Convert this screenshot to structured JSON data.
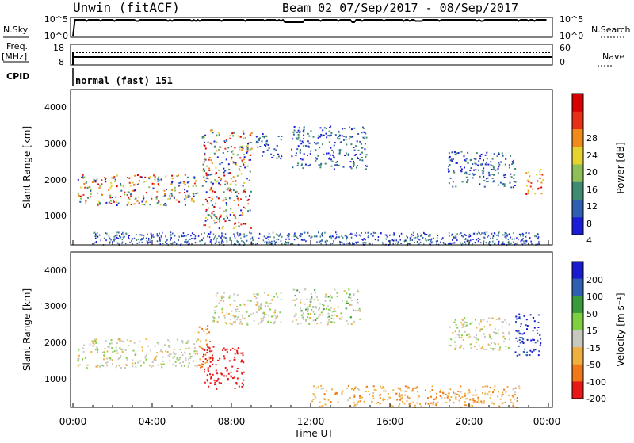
{
  "header": {
    "station": "Unwin (fitACF)",
    "beam_date": "Beam 02  07/Sep/2017 - 08/Sep/2017"
  },
  "top_panels": {
    "nsky_label": "N.Sky",
    "nsky_ticks": [
      "10^5",
      "10^0"
    ],
    "nsearch_label": "N.Search",
    "nsearch_ticks": [
      "10^5",
      "10^0"
    ],
    "freq_label": "Freq.",
    "freq_unit": "[MHz]",
    "freq_ticks": [
      "18",
      "8"
    ],
    "nave_label": "Nave",
    "nave_ticks": [
      "60",
      "0"
    ],
    "cpid_label": "CPID",
    "cpid_text": "normal (fast) 151"
  },
  "power_panel": {
    "ylabel": "Slant Range [km]",
    "yticks": [
      "4000",
      "3000",
      "2000",
      "1000"
    ],
    "colorbar_label": "Power [dB]",
    "colorbar_ticks": [
      "28",
      "24",
      "20",
      "16",
      "12",
      "8",
      "4"
    ]
  },
  "velocity_panel": {
    "ylabel": "Slant Range [km]",
    "yticks": [
      "4000",
      "3000",
      "2000",
      "1000"
    ],
    "colorbar_label": "Velocity [m s⁻¹]",
    "colorbar_ticks": [
      "200",
      "100",
      "50",
      "15",
      "-15",
      "-50",
      "-100",
      "-200"
    ]
  },
  "xaxis": {
    "label": "Time UT",
    "ticks": [
      "00:00",
      "04:00",
      "08:00",
      "12:00",
      "16:00",
      "20:00",
      "00:00"
    ]
  },
  "colors": {
    "power_scale": [
      "#1c1cd8",
      "#2f5fb0",
      "#3f8a72",
      "#8fbf58",
      "#e6d230",
      "#f08a1a",
      "#e83018",
      "#d80000"
    ],
    "velocity_scale": [
      "#1a1ad0",
      "#2f5fb0",
      "#3a9a3a",
      "#7fd040",
      "#c8c8c0",
      "#f0b040",
      "#f07818",
      "#e81818"
    ]
  },
  "chart_data": [
    {
      "type": "heatmap",
      "title": "Power",
      "xlabel": "Time UT",
      "ylabel": "Slant Range [km]",
      "x_range_hours": [
        0,
        24
      ],
      "ylim": [
        180,
        4500
      ],
      "value_label": "Power [dB]",
      "value_range": [
        0,
        32
      ],
      "regions": [
        {
          "t": [
            0.2,
            6.3
          ],
          "r": [
            1300,
            2150
          ],
          "level": "mixed",
          "peak_dB": 24
        },
        {
          "t": [
            6.5,
            9.0
          ],
          "r": [
            650,
            3400
          ],
          "level": "mixed",
          "peak_dB": 28
        },
        {
          "t": [
            9.2,
            10.5
          ],
          "r": [
            2600,
            3300
          ],
          "level": "low",
          "peak_dB": 8
        },
        {
          "t": [
            11.0,
            14.8
          ],
          "r": [
            2300,
            3500
          ],
          "level": "low",
          "peak_dB": 8
        },
        {
          "t": [
            18.9,
            22.3
          ],
          "r": [
            1800,
            2800
          ],
          "level": "low",
          "peak_dB": 10
        },
        {
          "t": [
            22.8,
            23.7
          ],
          "r": [
            1600,
            2300
          ],
          "level": "high",
          "peak_dB": 28
        }
      ]
    },
    {
      "type": "heatmap",
      "title": "Velocity",
      "xlabel": "Time UT",
      "ylabel": "Slant Range [km]",
      "x_range_hours": [
        0,
        24
      ],
      "ylim": [
        180,
        4500
      ],
      "value_label": "Velocity [m s⁻¹]",
      "value_range": [
        -200,
        200
      ],
      "regions": [
        {
          "t": [
            0.2,
            6.3
          ],
          "r": [
            1300,
            2100
          ],
          "v": 0
        },
        {
          "t": [
            6.3,
            6.9
          ],
          "r": [
            1300,
            2500
          ],
          "v": -60
        },
        {
          "t": [
            6.5,
            8.6
          ],
          "r": [
            700,
            1900
          ],
          "v": -220
        },
        {
          "t": [
            7.0,
            10.5
          ],
          "r": [
            2500,
            3400
          ],
          "v": 0
        },
        {
          "t": [
            11.0,
            14.5
          ],
          "r": [
            2500,
            3500
          ],
          "v": 10
        },
        {
          "t": [
            12.0,
            22.5
          ],
          "r": [
            200,
            800
          ],
          "v": -40
        },
        {
          "t": [
            18.9,
            22.0
          ],
          "r": [
            1800,
            2700
          ],
          "v": 0
        },
        {
          "t": [
            22.3,
            23.6
          ],
          "r": [
            1600,
            2800
          ],
          "v": 150
        }
      ]
    }
  ]
}
